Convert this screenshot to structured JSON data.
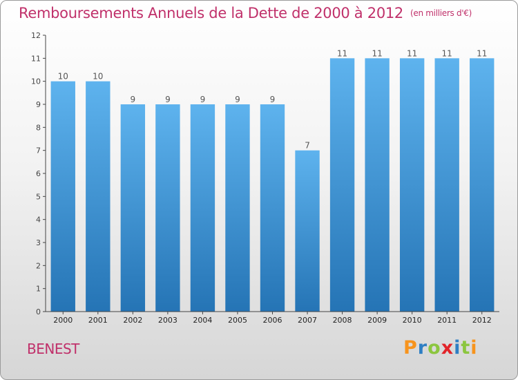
{
  "title": "Remboursements Annuels de la Dette de 2000 à 2012",
  "title_unit": "(en milliers d'€)",
  "commune": "BENEST",
  "brand": {
    "letters": [
      "P",
      "r",
      "o",
      "x",
      "i",
      "t",
      "i"
    ],
    "colors": [
      "#f7941d",
      "#2e7fc4",
      "#8cc63f",
      "#e2242a",
      "#2e7fc4",
      "#8cc63f",
      "#f7941d"
    ]
  },
  "colors": {
    "title": "#c0306a",
    "bar_light": "#5eb3ee",
    "bar_dark": "#2574b5"
  },
  "chart_data": {
    "type": "bar",
    "title": "Remboursements Annuels de la Dette de 2000 à 2012",
    "categories": [
      "2000",
      "2001",
      "2002",
      "2003",
      "2004",
      "2005",
      "2006",
      "2007",
      "2008",
      "2009",
      "2010",
      "2011",
      "2012"
    ],
    "values": [
      10,
      10,
      9,
      9,
      9,
      9,
      9,
      7,
      11,
      11,
      11,
      11,
      11
    ],
    "ylim": [
      0,
      12
    ],
    "yticks": [
      0,
      1,
      2,
      3,
      4,
      5,
      6,
      7,
      8,
      9,
      10,
      11,
      12
    ],
    "xlabel": "",
    "ylabel": "",
    "grid": false,
    "data_labels": true
  }
}
